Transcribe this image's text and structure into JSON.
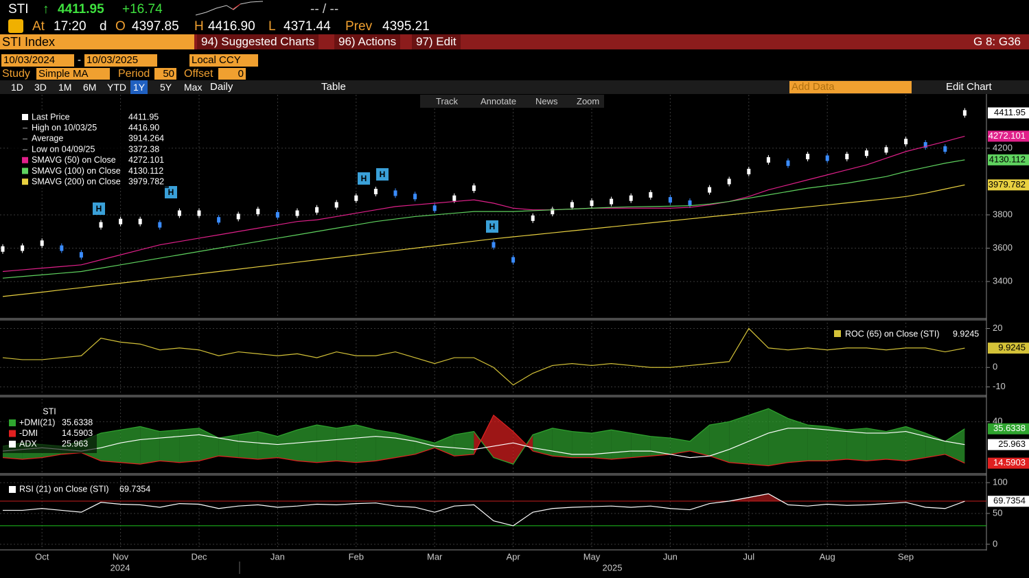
{
  "header": {
    "ticker": "STI",
    "arrow": "↑",
    "last": "4411.95",
    "change": "+16.74",
    "bidask": "-- / --",
    "at": "At",
    "time": "17:20",
    "d": "d",
    "open_label": "O",
    "open": "4397.85",
    "high_label": "H",
    "high": "4416.90",
    "low_label": "L",
    "low": "4371.44",
    "prev_label": "Prev",
    "prev": "4395.21"
  },
  "toolbar": {
    "security": "STI Index",
    "menus": [
      "94) Suggested Charts",
      "96) Actions",
      "97) Edit"
    ],
    "page": "G 8: G36"
  },
  "date_range": {
    "start": "10/03/2024",
    "separator": "-",
    "end": "10/03/2025",
    "currency": "Local CCY"
  },
  "study": {
    "label": "Study",
    "type": "Simple MA",
    "period_label": "Period",
    "period": "50",
    "offset_label": "Offset",
    "offset": "0"
  },
  "ranges": [
    "1D",
    "3D",
    "1M",
    "6M",
    "YTD",
    "1Y",
    "5Y",
    "Max"
  ],
  "frequency": "Daily",
  "table": "Table",
  "add_data": "Add Data",
  "edit_chart": "Edit Chart",
  "tools": [
    "Track",
    "Annotate",
    "News",
    "Zoom"
  ],
  "chart_data": [
    {
      "type": "line",
      "grid": true,
      "ylim": [
        3186,
        4521
      ],
      "yticks": [
        3400,
        3600,
        3800,
        4200
      ],
      "annotations": [
        "H",
        "H",
        "H",
        "H",
        "H"
      ],
      "stats": [
        {
          "name": "High on 10/03/25",
          "value": "4416.90"
        },
        {
          "name": "Average",
          "value": "3914.264"
        },
        {
          "name": "Low on 04/09/25",
          "value": "3372.38"
        }
      ],
      "series": [
        {
          "name": "Last Price",
          "style": "candle",
          "color": "#ffffff",
          "down_color": "#3a8cff",
          "values": [
            3595,
            3600,
            3630,
            3600,
            3560,
            3740,
            3760,
            3760,
            3740,
            3810,
            3810,
            3770,
            3790,
            3820,
            3800,
            3810,
            3830,
            3860,
            3900,
            3940,
            3930,
            3910,
            3840,
            3900,
            3960,
            3620,
            3530,
            3780,
            3820,
            3860,
            3870,
            3880,
            3900,
            3920,
            3890,
            3870,
            3950,
            4000,
            4060,
            4130,
            4110,
            4150,
            4140,
            4150,
            4170,
            4190,
            4240,
            4220,
            4195,
            4411.95
          ]
        },
        {
          "name": "SMAVG (50)  on Close",
          "color": "#e0208a",
          "values": [
            3460,
            3470,
            3480,
            3490,
            3500,
            3530,
            3560,
            3590,
            3620,
            3640,
            3660,
            3680,
            3700,
            3720,
            3740,
            3760,
            3770,
            3790,
            3810,
            3830,
            3850,
            3860,
            3870,
            3880,
            3890,
            3870,
            3840,
            3830,
            3830,
            3835,
            3840,
            3840,
            3840,
            3840,
            3840,
            3845,
            3860,
            3880,
            3910,
            3950,
            3980,
            4010,
            4040,
            4070,
            4100,
            4140,
            4180,
            4210,
            4240,
            4272.101
          ]
        },
        {
          "name": "SMAVG (100)  on Close",
          "color": "#5fd35f",
          "values": [
            3420,
            3430,
            3440,
            3450,
            3460,
            3480,
            3500,
            3520,
            3540,
            3560,
            3580,
            3600,
            3620,
            3640,
            3660,
            3680,
            3700,
            3720,
            3740,
            3760,
            3775,
            3790,
            3800,
            3810,
            3820,
            3820,
            3820,
            3825,
            3830,
            3835,
            3840,
            3845,
            3848,
            3850,
            3852,
            3855,
            3865,
            3880,
            3900,
            3920,
            3940,
            3960,
            3975,
            3990,
            4010,
            4030,
            4060,
            4085,
            4110,
            4130.112
          ]
        },
        {
          "name": "SMAVG (200)  on Close",
          "color": "#e8d040",
          "values": [
            3310,
            3323,
            3336,
            3350,
            3363,
            3377,
            3390,
            3404,
            3418,
            3432,
            3446,
            3460,
            3474,
            3488,
            3502,
            3516,
            3530,
            3544,
            3558,
            3572,
            3586,
            3600,
            3614,
            3628,
            3642,
            3656,
            3668,
            3680,
            3692,
            3704,
            3716,
            3728,
            3740,
            3752,
            3764,
            3776,
            3788,
            3800,
            3812,
            3824,
            3836,
            3848,
            3860,
            3872,
            3884,
            3896,
            3910,
            3930,
            3955,
            3979.782
          ]
        }
      ]
    },
    {
      "type": "line",
      "grid": true,
      "ylim": [
        -14,
        23
      ],
      "yticks": [
        20,
        0,
        -10
      ],
      "series": [
        {
          "name": "ROC (65)  on Close (STI)",
          "color": "#d4c238",
          "values": [
            5,
            4,
            4,
            5,
            6,
            15,
            13,
            12,
            9,
            10,
            9,
            6,
            8,
            7,
            6,
            7,
            5,
            8,
            6,
            6,
            8,
            5,
            2,
            5,
            5,
            0,
            -9,
            -3,
            1,
            2,
            1,
            2,
            1,
            0,
            0,
            1,
            2,
            3,
            20,
            10,
            9,
            10,
            9,
            10,
            10,
            9,
            10,
            10,
            8,
            9.9245
          ]
        }
      ]
    },
    {
      "type": "dmi",
      "title": "STI",
      "grid": true,
      "ylim": [
        9,
        54
      ],
      "yticks": [
        40
      ],
      "series": [
        {
          "name": "+DMI(21)",
          "color": "#2fa52f",
          "values": [
            25,
            27,
            26,
            25,
            28,
            33,
            35,
            37,
            34,
            35,
            36,
            30,
            32,
            34,
            31,
            35,
            38,
            36,
            38,
            35,
            33,
            30,
            27,
            32,
            34,
            18,
            14,
            32,
            36,
            34,
            33,
            35,
            33,
            31,
            30,
            28,
            38,
            40,
            44,
            48,
            42,
            38,
            37,
            35,
            36,
            34,
            37,
            33,
            28,
            35.6338
          ]
        },
        {
          "name": "-DMI",
          "color": "#e02020",
          "values": [
            18,
            17,
            18,
            20,
            21,
            16,
            15,
            14,
            16,
            15,
            16,
            19,
            18,
            17,
            18,
            16,
            15,
            16,
            15,
            16,
            18,
            20,
            24,
            19,
            20,
            44,
            34,
            22,
            19,
            18,
            18,
            17,
            18,
            19,
            20,
            22,
            19,
            15,
            14,
            13,
            15,
            16,
            16,
            17,
            16,
            17,
            16,
            18,
            20,
            14.5903
          ]
        },
        {
          "name": "ADX",
          "color": "#ffffff",
          "values": [
            22,
            23,
            24,
            23,
            22,
            24,
            27,
            29,
            30,
            31,
            32,
            30,
            28,
            27,
            26,
            27,
            28,
            29,
            30,
            31,
            30,
            28,
            25,
            24,
            23,
            25,
            27,
            24,
            22,
            20,
            20,
            21,
            22,
            22,
            20,
            18,
            19,
            23,
            28,
            33,
            36,
            36,
            35,
            34,
            33,
            33,
            34,
            31,
            28,
            25.963
          ]
        }
      ]
    },
    {
      "type": "line",
      "grid": true,
      "ylim": [
        -8,
        109
      ],
      "yticks": [
        100,
        50,
        0
      ],
      "ref_lines": [
        {
          "value": 70,
          "color": "#c81e1e"
        },
        {
          "value": 30,
          "color": "#1ec81e"
        }
      ],
      "series": [
        {
          "name": "RSI (21)  on Close (STI)",
          "color": "#ffffff",
          "values": [
            55,
            55,
            58,
            55,
            52,
            68,
            65,
            64,
            60,
            66,
            65,
            58,
            62,
            64,
            60,
            62,
            65,
            64,
            66,
            67,
            62,
            60,
            52,
            62,
            64,
            38,
            30,
            52,
            58,
            60,
            61,
            62,
            60,
            62,
            58,
            56,
            66,
            70,
            76,
            82,
            64,
            62,
            65,
            63,
            64,
            66,
            68,
            60,
            58,
            69.7354
          ]
        }
      ],
      "categories": [
        null,
        null,
        "Oct",
        null,
        null,
        null,
        "Nov",
        null,
        null,
        null,
        "Dec",
        null,
        null,
        null,
        "Jan",
        null,
        null,
        null,
        "Feb",
        null,
        null,
        null,
        "Mar",
        null,
        null,
        null,
        "Apr",
        null,
        null,
        null,
        "May",
        null,
        null,
        null,
        "Jun",
        null,
        null,
        null,
        "Jul",
        null,
        null,
        null,
        "Aug",
        null,
        null,
        null,
        "Sep",
        null,
        null,
        null
      ],
      "years": [
        "2024",
        "2025"
      ]
    }
  ]
}
